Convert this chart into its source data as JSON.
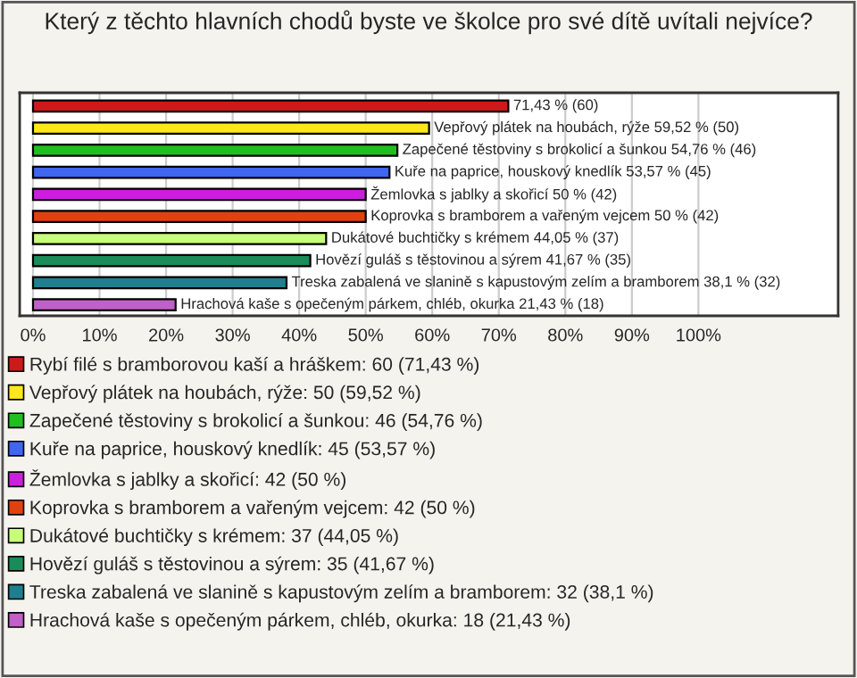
{
  "chart_data": {
    "type": "bar",
    "orientation": "horizontal",
    "title": "Který z těchto hlavních chodů byste ve školce pro své dítě uvítali nejvíce?",
    "categories": [
      null,
      null,
      null,
      null,
      null,
      null,
      null,
      null,
      null,
      null
    ],
    "series": [
      {
        "name": "Rybí filé s bramborovou kaší a hráškem: 60 (71,43 %)",
        "color": "#cc1a1a",
        "values": [
          71.43,
          null,
          null,
          null,
          null,
          null,
          null,
          null,
          null,
          null
        ],
        "value_labels": [
          "71,43 % (60)",
          null,
          null,
          null,
          null,
          null,
          null,
          null,
          null,
          null
        ]
      },
      {
        "name": "Vepřový plátek na houbách, rýže: 50 (59,52 %)",
        "color": "#ffe81a",
        "values": [
          null,
          59.52,
          null,
          null,
          null,
          null,
          null,
          null,
          null,
          null
        ],
        "value_labels": [
          null,
          "Vepřový plátek na houbách, rýže 59,52 % (50)",
          null,
          null,
          null,
          null,
          null,
          null,
          null,
          null
        ]
      },
      {
        "name": "Zapečené těstoviny s brokolicí a šunkou: 46 (54,76 %)",
        "color": "#1fbf1f",
        "values": [
          null,
          null,
          54.76,
          null,
          null,
          null,
          null,
          null,
          null,
          null
        ],
        "value_labels": [
          null,
          null,
          "Zapečené těstoviny s brokolicí a šunkou 54,76 % (46)",
          null,
          null,
          null,
          null,
          null,
          null,
          null
        ]
      },
      {
        "name": "Kuře na paprice, houskový knedlík: 45 (53,57 %)",
        "color": "#3f66ee",
        "values": [
          null,
          null,
          null,
          53.57,
          null,
          null,
          null,
          null,
          null,
          null
        ],
        "value_labels": [
          null,
          null,
          null,
          "Kuře na paprice, houskový knedlík 53,57 % (45)",
          null,
          null,
          null,
          null,
          null,
          null
        ]
      },
      {
        "name": "Žemlovka s jablky a skořicí: 42 (50 %)",
        "color": "#cc1fdd",
        "values": [
          null,
          null,
          null,
          null,
          50,
          null,
          null,
          null,
          null,
          null
        ],
        "value_labels": [
          null,
          null,
          null,
          null,
          "Žemlovka s jablky a skořicí 50 % (42)",
          null,
          null,
          null,
          null,
          null
        ]
      },
      {
        "name": "Koprovka s bramborem a vařeným vejcem: 42 (50 %)",
        "color": "#e2400f",
        "values": [
          null,
          null,
          null,
          null,
          null,
          50,
          null,
          null,
          null,
          null
        ],
        "value_labels": [
          null,
          null,
          null,
          null,
          null,
          "Koprovka s bramborem a vařeným vejcem 50 % (42)",
          null,
          null,
          null,
          null
        ]
      },
      {
        "name": "Dukátové buchtičky s krémem: 37 (44,05 %)",
        "color": "#c8ff7a",
        "values": [
          null,
          null,
          null,
          null,
          null,
          null,
          44.05,
          null,
          null,
          null
        ],
        "value_labels": [
          null,
          null,
          null,
          null,
          null,
          null,
          "Dukátové buchtičky s krémem 44,05 % (37)",
          null,
          null,
          null
        ]
      },
      {
        "name": "Hovězí guláš s těstovinou a sýrem: 35 (41,67 %)",
        "color": "#1a8c5a",
        "values": [
          null,
          null,
          null,
          null,
          null,
          null,
          null,
          41.67,
          null,
          null
        ],
        "value_labels": [
          null,
          null,
          null,
          null,
          null,
          null,
          null,
          "Hovězí guláš s těstovinou a sýrem 41,67 % (35)",
          null,
          null
        ]
      },
      {
        "name": "Treska zabalená ve slanině s kapustovým zelím a bramborem: 32 (38,1 %)",
        "color": "#1f7f8f",
        "values": [
          null,
          null,
          null,
          null,
          null,
          null,
          null,
          null,
          38.1,
          null
        ],
        "value_labels": [
          null,
          null,
          null,
          null,
          null,
          null,
          null,
          null,
          "Treska zabalená ve slanině s kapustovým zelím a bramborem 38,1 % (32)",
          null
        ]
      },
      {
        "name": "Hrachová kaše s opečeným párkem, chléb, okurka: 18 (21,43 %)",
        "color": "#c060c8",
        "values": [
          null,
          null,
          null,
          null,
          null,
          null,
          null,
          null,
          null,
          21.43
        ],
        "value_labels": [
          null,
          null,
          null,
          null,
          null,
          null,
          null,
          null,
          null,
          "Hrachová kaše s opečeným párkem, chléb, okurka 21,43 % (18)"
        ]
      }
    ],
    "xlim": [
      -2,
      121
    ],
    "xticks": [
      {
        "value": 0,
        "label": "0%"
      },
      {
        "value": 10,
        "label": "10%"
      },
      {
        "value": 20,
        "label": "20%"
      },
      {
        "value": 30,
        "label": "30%"
      },
      {
        "value": 40,
        "label": "40%"
      },
      {
        "value": 50,
        "label": "50%"
      },
      {
        "value": 60,
        "label": "60%"
      },
      {
        "value": 70,
        "label": "70%"
      },
      {
        "value": 80,
        "label": "80%"
      },
      {
        "value": 90,
        "label": "90%"
      },
      {
        "value": 100,
        "label": "100%"
      }
    ],
    "grid": "x",
    "legend": "bottom"
  }
}
